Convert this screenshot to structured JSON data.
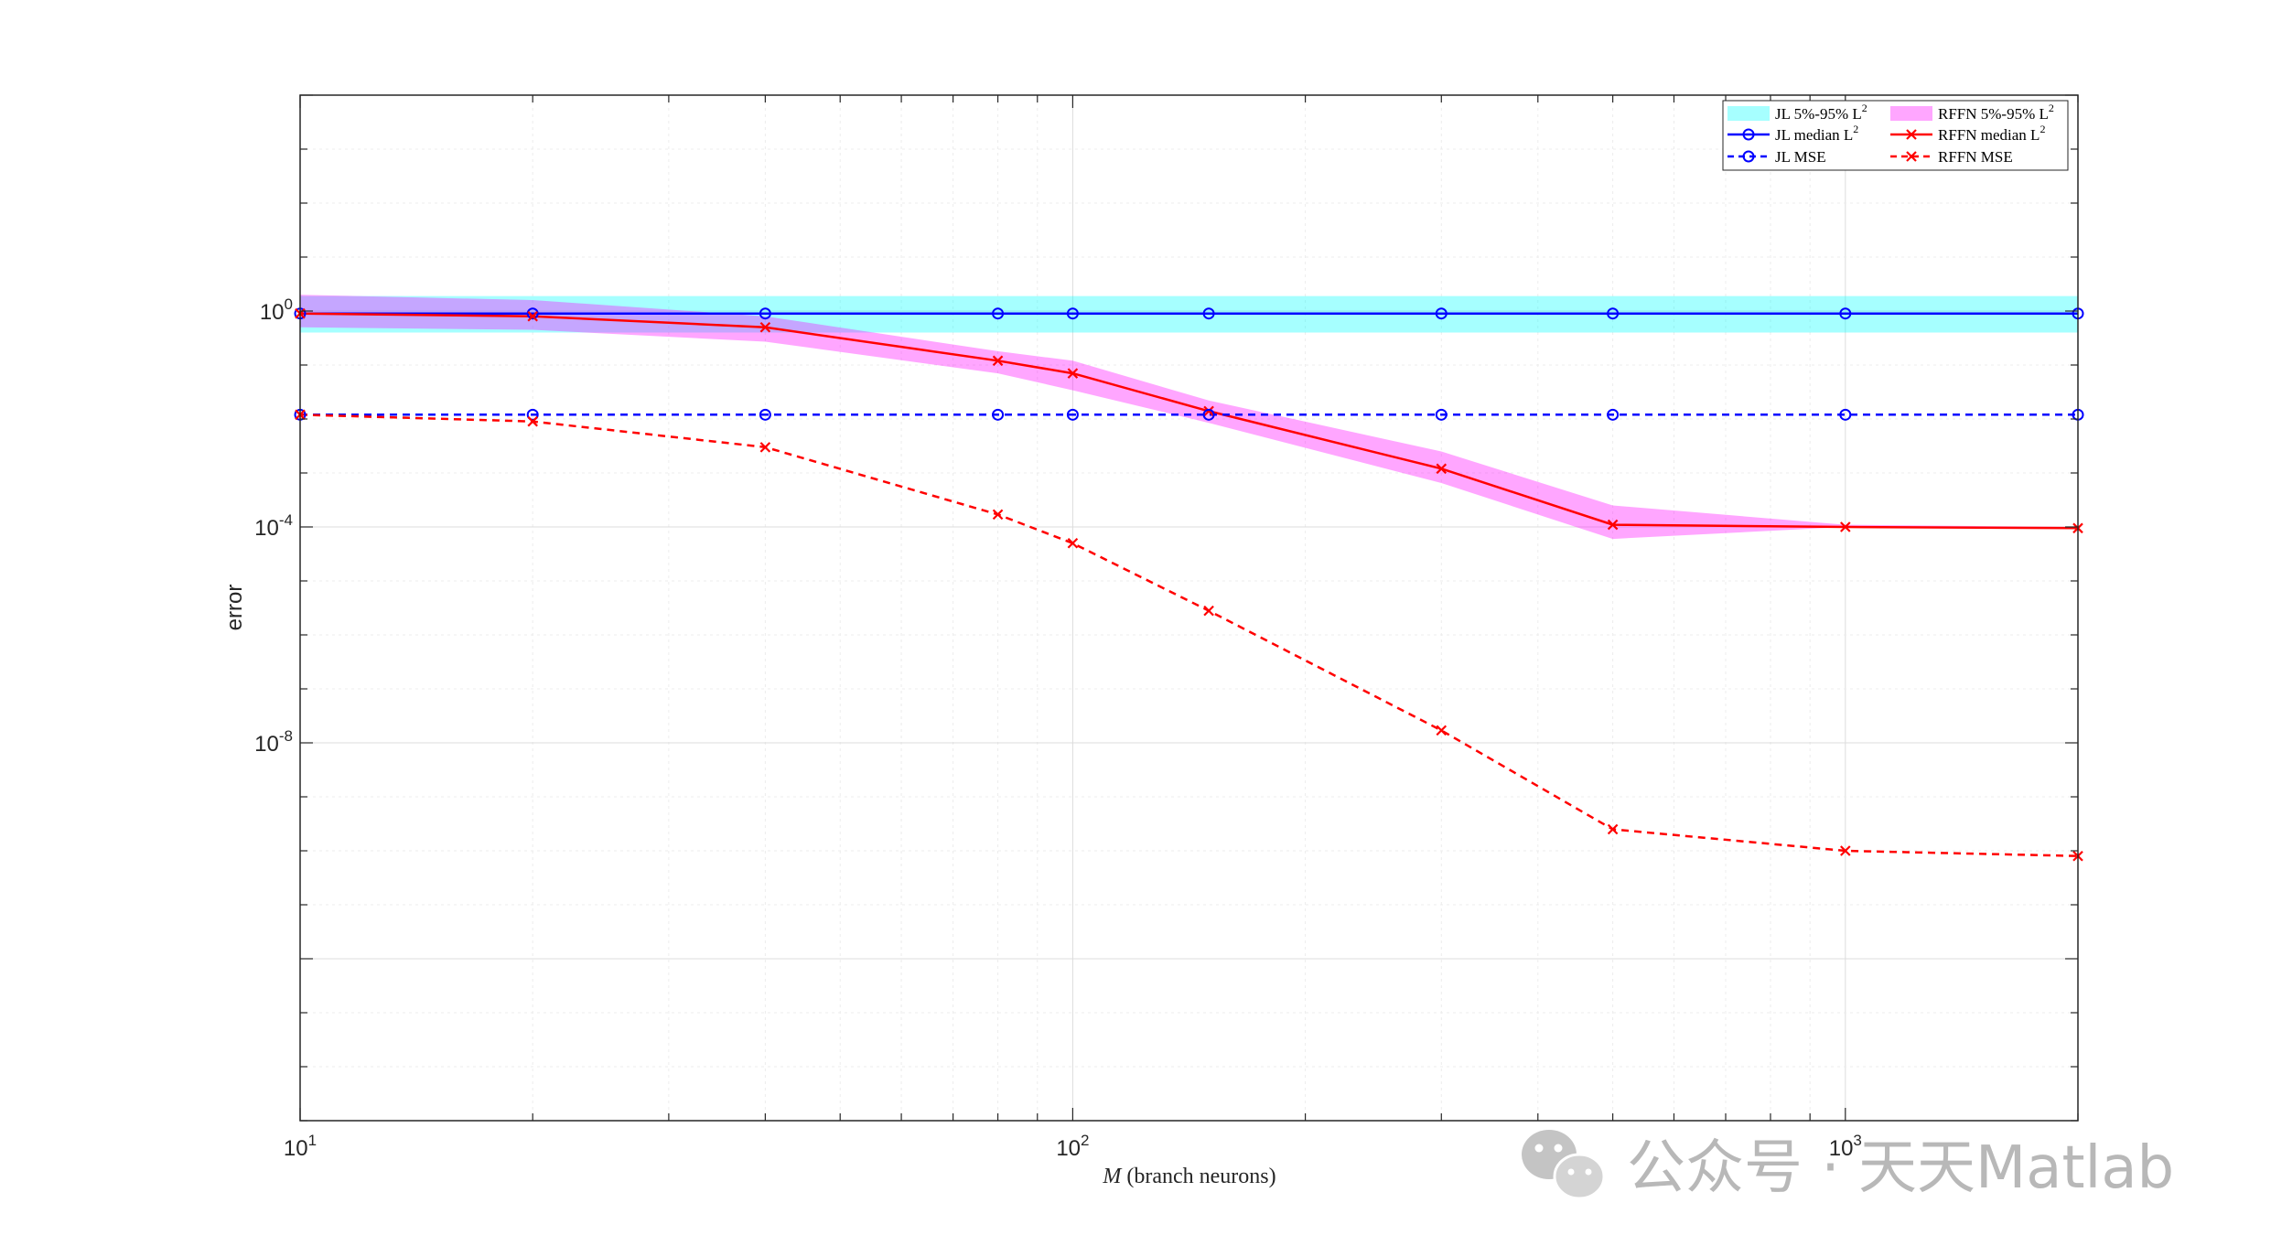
{
  "chart_data": {
    "type": "line",
    "title": "",
    "xlabel_italic": "M",
    "xlabel_rest": " (branch neurons)",
    "ylabel": "error",
    "xscale": "log",
    "yscale": "log",
    "xlim": [
      10,
      2000
    ],
    "ylim": [
      1e-15,
      10000.0
    ],
    "x_ticks": [
      {
        "value": 10,
        "base": "10",
        "exp": "1"
      },
      {
        "value": 100,
        "base": "10",
        "exp": "2"
      },
      {
        "value": 1000,
        "base": "10",
        "exp": "3"
      }
    ],
    "y_ticks": [
      {
        "value": 1,
        "base": "10",
        "exp": "0"
      },
      {
        "value": 0.0001,
        "base": "10",
        "exp": "-4"
      },
      {
        "value": 1e-08,
        "base": "10",
        "exp": "-8"
      }
    ],
    "grid": true,
    "legend_position": "top-right",
    "x": [
      10,
      20,
      40,
      80,
      100,
      150,
      300,
      500,
      1000,
      2000
    ],
    "series": [
      {
        "name": "JL 5%-95% L",
        "sup": "2",
        "kind": "band",
        "color": "#00ffff",
        "lower": [
          0.4,
          0.4,
          0.4,
          0.4,
          0.4,
          0.4,
          0.4,
          0.4,
          0.4,
          0.4
        ],
        "upper": [
          1.9,
          1.9,
          1.9,
          1.9,
          1.9,
          1.9,
          1.9,
          1.9,
          1.9,
          1.9
        ]
      },
      {
        "name": "RFFN 5%-95% L",
        "sup": "2",
        "kind": "band",
        "color": "#ff00ff",
        "lower": [
          0.5,
          0.45,
          0.27,
          0.07,
          0.034,
          0.0085,
          0.00065,
          6e-05,
          0.0001,
          0.0001
        ],
        "upper": [
          2.0,
          1.6,
          0.8,
          0.18,
          0.12,
          0.022,
          0.0025,
          0.00025,
          0.00011,
          0.0001
        ]
      },
      {
        "name": "JL median L",
        "sup": "2",
        "kind": "line",
        "color": "#0000ff",
        "dash": "solid",
        "marker": "circle",
        "values": [
          0.9,
          0.9,
          0.9,
          0.9,
          0.9,
          0.9,
          0.9,
          0.9,
          0.9,
          0.9
        ]
      },
      {
        "name": "RFFN median L",
        "sup": "2",
        "kind": "line",
        "color": "#ff0000",
        "dash": "solid",
        "marker": "x",
        "values": [
          0.9,
          0.8,
          0.5,
          0.12,
          0.07,
          0.014,
          0.0012,
          0.00011,
          0.0001,
          9.5e-05
        ]
      },
      {
        "name": "JL MSE",
        "sup": "",
        "kind": "line",
        "color": "#0000ff",
        "dash": "dashed",
        "marker": "circle",
        "values": [
          0.012,
          0.012,
          0.012,
          0.012,
          0.012,
          0.012,
          0.012,
          0.012,
          0.012,
          0.012
        ]
      },
      {
        "name": "RFFN MSE",
        "sup": "",
        "kind": "line",
        "color": "#ff0000",
        "dash": "dashed",
        "marker": "x",
        "values": [
          0.012,
          0.009,
          0.003,
          0.00017,
          5e-05,
          2.8e-06,
          1.7e-08,
          2.5e-10,
          1e-10,
          8e-11
        ]
      }
    ]
  },
  "watermark": {
    "text": "公众号 · 天天Matlab",
    "icon": "wechat-icon"
  }
}
